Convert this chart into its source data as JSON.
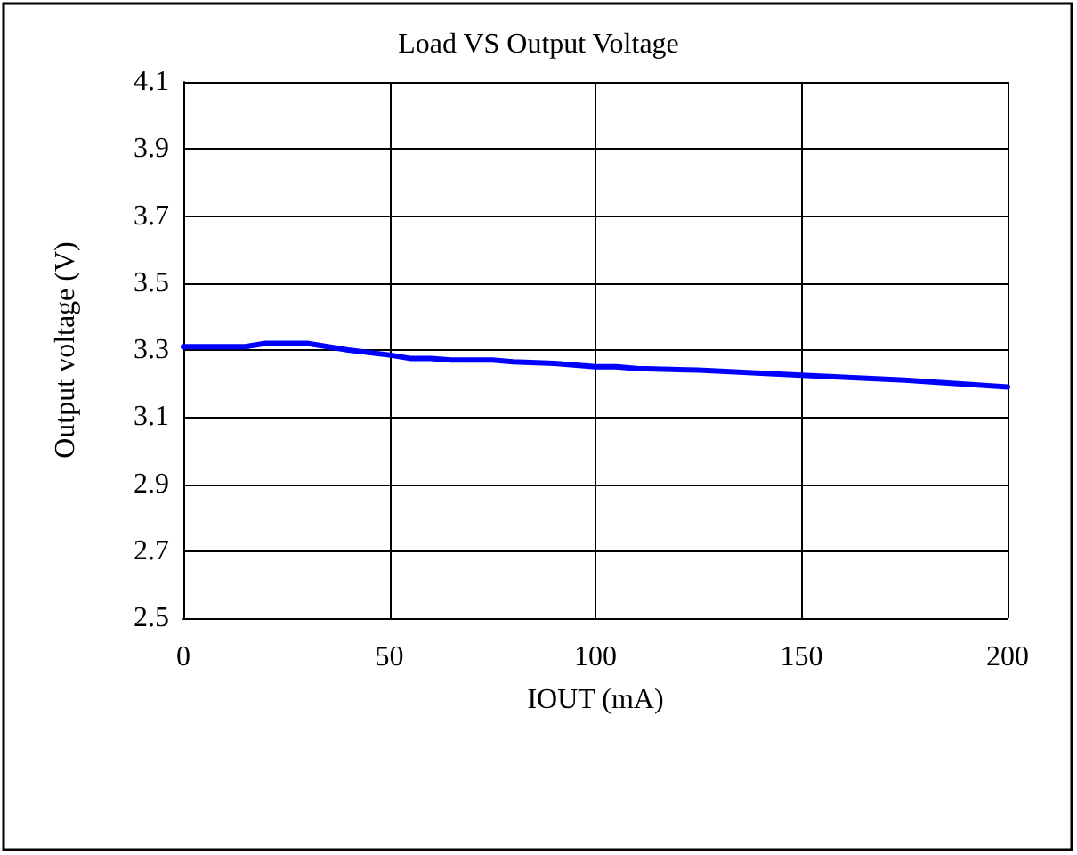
{
  "chart_data": {
    "type": "line",
    "title": "Load VS Output Voltage",
    "xlabel": "IOUT (mA)",
    "ylabel": "Output voltage (V)",
    "x": [
      0,
      15,
      20,
      30,
      40,
      50,
      55,
      60,
      65,
      75,
      80,
      90,
      100,
      105,
      110,
      125,
      150,
      175,
      200
    ],
    "series": [
      {
        "color": "#0000ff",
        "values": [
          3.31,
          3.31,
          3.32,
          3.32,
          3.3,
          3.285,
          3.275,
          3.275,
          3.27,
          3.27,
          3.265,
          3.26,
          3.25,
          3.25,
          3.245,
          3.24,
          3.225,
          3.21,
          3.19
        ]
      }
    ],
    "xlim": [
      0,
      200
    ],
    "xticks": [
      0,
      50,
      100,
      150,
      200
    ],
    "ylim": [
      2.5,
      4.1
    ],
    "yticks": [
      2.5,
      2.7,
      2.9,
      3.1,
      3.3,
      3.5,
      3.7,
      3.9,
      4.1
    ],
    "grid": true,
    "marker": "none",
    "line_style": "solid"
  }
}
